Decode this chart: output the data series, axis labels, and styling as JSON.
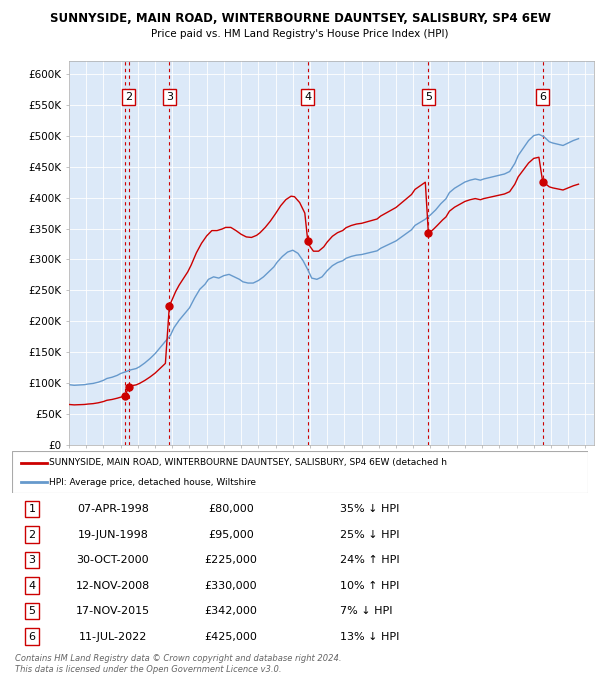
{
  "title1": "SUNNYSIDE, MAIN ROAD, WINTERBOURNE DAUNTSEY, SALISBURY, SP4 6EW",
  "title2": "Price paid vs. HM Land Registry's House Price Index (HPI)",
  "xlim": [
    1995.0,
    2025.5
  ],
  "ylim": [
    0,
    620000
  ],
  "yticks": [
    0,
    50000,
    100000,
    150000,
    200000,
    250000,
    300000,
    350000,
    400000,
    450000,
    500000,
    550000,
    600000
  ],
  "ytick_labels": [
    "£0",
    "£50K",
    "£100K",
    "£150K",
    "£200K",
    "£250K",
    "£300K",
    "£350K",
    "£400K",
    "£450K",
    "£500K",
    "£550K",
    "£600K"
  ],
  "background_color": "#dce9f8",
  "sales": [
    {
      "num": 1,
      "year": 1998.27,
      "price": 80000,
      "label": "1"
    },
    {
      "num": 2,
      "year": 1998.46,
      "price": 95000,
      "label": "2"
    },
    {
      "num": 3,
      "year": 2000.83,
      "price": 225000,
      "label": "3"
    },
    {
      "num": 4,
      "year": 2008.87,
      "price": 330000,
      "label": "4"
    },
    {
      "num": 5,
      "year": 2015.88,
      "price": 342000,
      "label": "5"
    },
    {
      "num": 6,
      "year": 2022.52,
      "price": 425000,
      "label": "6"
    }
  ],
  "sale_color": "#cc0000",
  "vline_color": "#cc0000",
  "hpi_color": "#6699cc",
  "legend_line1": "SUNNYSIDE, MAIN ROAD, WINTERBOURNE DAUNTSEY, SALISBURY, SP4 6EW (detached h",
  "legend_line2": "HPI: Average price, detached house, Wiltshire",
  "table_rows": [
    {
      "num": "1",
      "date": "07-APR-1998",
      "price": "£80,000",
      "hpi": "35% ↓ HPI"
    },
    {
      "num": "2",
      "date": "19-JUN-1998",
      "price": "£95,000",
      "hpi": "25% ↓ HPI"
    },
    {
      "num": "3",
      "date": "30-OCT-2000",
      "price": "£225,000",
      "hpi": "24% ↑ HPI"
    },
    {
      "num": "4",
      "date": "12-NOV-2008",
      "price": "£330,000",
      "hpi": "10% ↑ HPI"
    },
    {
      "num": "5",
      "date": "17-NOV-2015",
      "price": "£342,000",
      "hpi": "7% ↓ HPI"
    },
    {
      "num": "6",
      "date": "11-JUL-2022",
      "price": "£425,000",
      "hpi": "13% ↓ HPI"
    }
  ],
  "footnote1": "Contains HM Land Registry data © Crown copyright and database right 2024.",
  "footnote2": "This data is licensed under the Open Government Licence v3.0."
}
